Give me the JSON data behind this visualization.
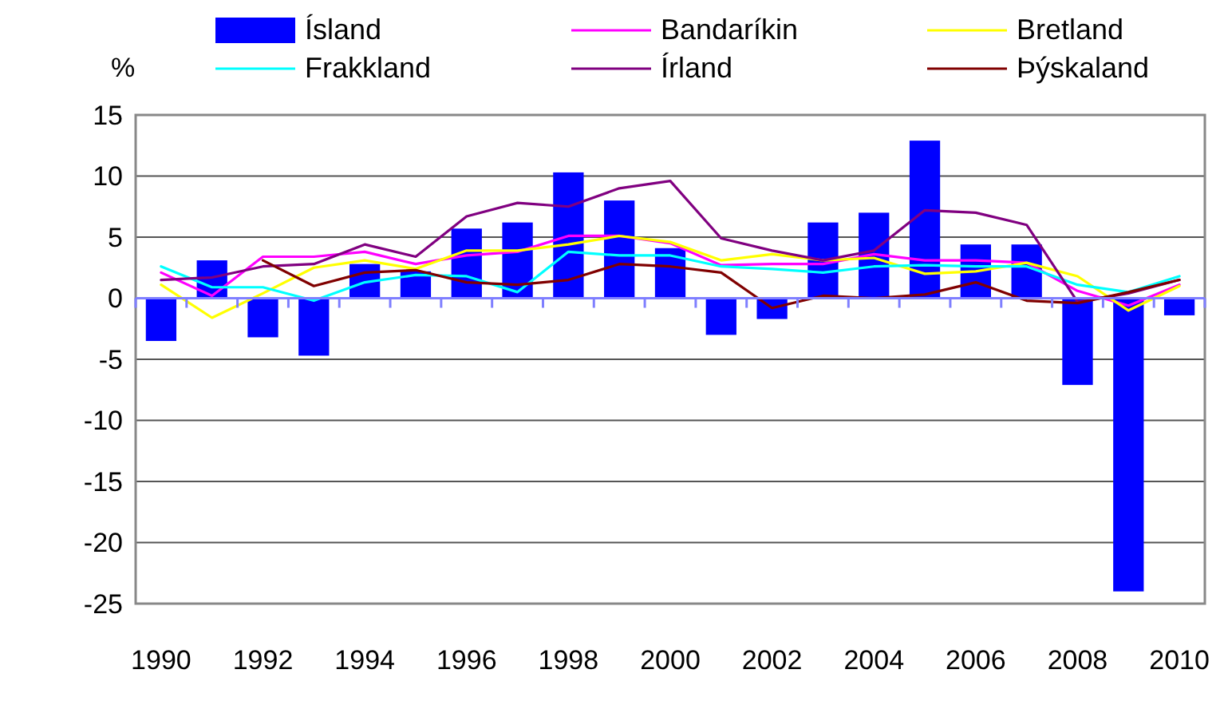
{
  "chart_data": {
    "type": "bar",
    "ylabel": "%",
    "categories": [
      "1990",
      null,
      "1992",
      null,
      "1994",
      null,
      "1996",
      null,
      "1998",
      null,
      "2000",
      null,
      "2002",
      null,
      "2004",
      null,
      "2006",
      null,
      "2008",
      null,
      "2010"
    ],
    "series": [
      {
        "name": "Ísland",
        "color": "#0000ff",
        "values": [
          -3.5,
          3.1,
          -3.2,
          -4.7,
          2.8,
          2.2,
          5.7,
          6.2,
          10.3,
          8.0,
          4.1,
          -3.0,
          -1.7,
          6.2,
          7.0,
          12.9,
          4.4,
          4.4,
          -7.1,
          -24.0,
          -1.4
        ]
      },
      {
        "name": "Bandaríkin",
        "type": "line",
        "color": "#ff00ff",
        "values": [
          2.1,
          0.2,
          3.4,
          3.4,
          3.8,
          2.8,
          3.5,
          3.8,
          5.1,
          5.1,
          4.5,
          2.7,
          2.8,
          2.8,
          3.6,
          3.1,
          3.1,
          2.9,
          0.6,
          -0.6,
          1.1
        ]
      },
      {
        "name": "Bretland",
        "type": "line",
        "color": "#ffff00",
        "values": [
          1.1,
          -1.6,
          0.4,
          2.5,
          3.1,
          2.4,
          3.9,
          3.9,
          4.4,
          5.1,
          4.6,
          3.1,
          3.6,
          3.1,
          3.3,
          2.0,
          2.2,
          2.9,
          1.8,
          -1.0,
          1.0
        ]
      },
      {
        "name": "Frakkland",
        "type": "line",
        "color": "#00ffff",
        "values": [
          2.6,
          0.9,
          0.9,
          -0.2,
          1.3,
          1.9,
          1.8,
          0.5,
          3.8,
          3.5,
          3.5,
          2.6,
          2.4,
          2.1,
          2.6,
          2.7,
          2.6,
          2.6,
          1.1,
          0.5,
          1.8
        ]
      },
      {
        "name": "Írland",
        "type": "line",
        "color": "#800080",
        "values": [
          1.5,
          1.7,
          2.6,
          2.8,
          4.4,
          3.4,
          6.7,
          7.8,
          7.5,
          9.0,
          9.6,
          4.9,
          3.9,
          3.1,
          3.9,
          7.2,
          7.0,
          6.0,
          -0.3,
          0.4,
          1.5
        ]
      },
      {
        "name": "Þýskaland",
        "type": "line",
        "color": "#800000",
        "values": [
          null,
          null,
          3.1,
          1.0,
          2.1,
          2.3,
          1.3,
          1.1,
          1.5,
          2.8,
          2.6,
          2.1,
          -0.8,
          0.2,
          0.0,
          0.3,
          1.3,
          -0.2,
          -0.4,
          0.5,
          1.5
        ]
      }
    ],
    "ylim": [
      -25,
      15
    ],
    "yticks": [
      -25,
      -20,
      -15,
      -10,
      -5,
      0,
      5,
      10,
      15
    ],
    "grid": "y",
    "legend": "top",
    "ref_lines": [
      {
        "axis": "y",
        "value": 0,
        "color": "#7f7fff"
      }
    ]
  }
}
